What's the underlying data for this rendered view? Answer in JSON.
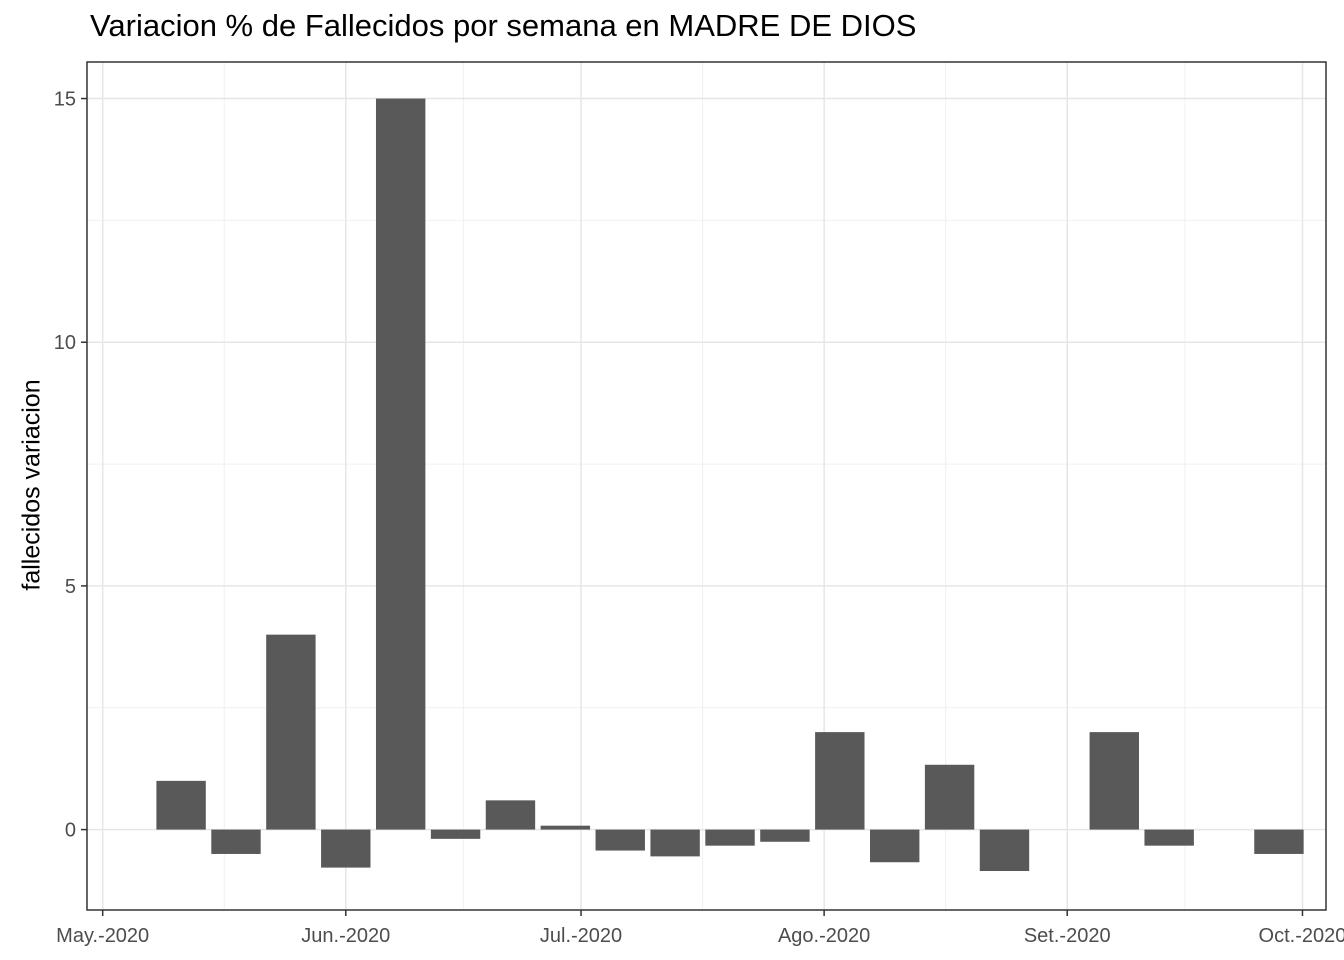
{
  "chart_data": {
    "type": "bar",
    "title": "Variacion % de Fallecidos por semana en MADRE DE DIOS",
    "xlabel": "",
    "ylabel": "fallecidos variacion",
    "x_axis": {
      "type": "date",
      "range": [
        "2020-04-29",
        "2020-10-04"
      ],
      "ticks": [
        {
          "date": "2020-05-01",
          "label": "May.-2020"
        },
        {
          "date": "2020-06-01",
          "label": "Jun.-2020"
        },
        {
          "date": "2020-07-01",
          "label": "Jul.-2020"
        },
        {
          "date": "2020-08-01",
          "label": "Ago.-2020"
        },
        {
          "date": "2020-09-01",
          "label": "Set.-2020"
        },
        {
          "date": "2020-10-01",
          "label": "Oct.-2020"
        }
      ]
    },
    "ylim": [
      -1.65,
      15.75
    ],
    "y_ticks": [
      0,
      5,
      10,
      15
    ],
    "grid": true,
    "bar_color": "#595959",
    "series": [
      {
        "dates": [
          "2020-05-11",
          "2020-05-18",
          "2020-05-25",
          "2020-06-01",
          "2020-06-08",
          "2020-06-15",
          "2020-06-22",
          "2020-06-29",
          "2020-07-06",
          "2020-07-13",
          "2020-07-20",
          "2020-07-27",
          "2020-08-03",
          "2020-08-10",
          "2020-08-17",
          "2020-08-24",
          "2020-08-31",
          "2020-09-07",
          "2020-09-14",
          "2020-09-21",
          "2020-09-28"
        ],
        "values": [
          1.0,
          -0.5,
          4.0,
          -0.78,
          15.0,
          -0.19,
          0.6,
          0.08,
          -0.43,
          -0.55,
          -0.33,
          -0.25,
          2.0,
          -0.67,
          1.33,
          -0.85,
          0,
          2.0,
          -0.33,
          0,
          -0.5
        ]
      }
    ]
  }
}
